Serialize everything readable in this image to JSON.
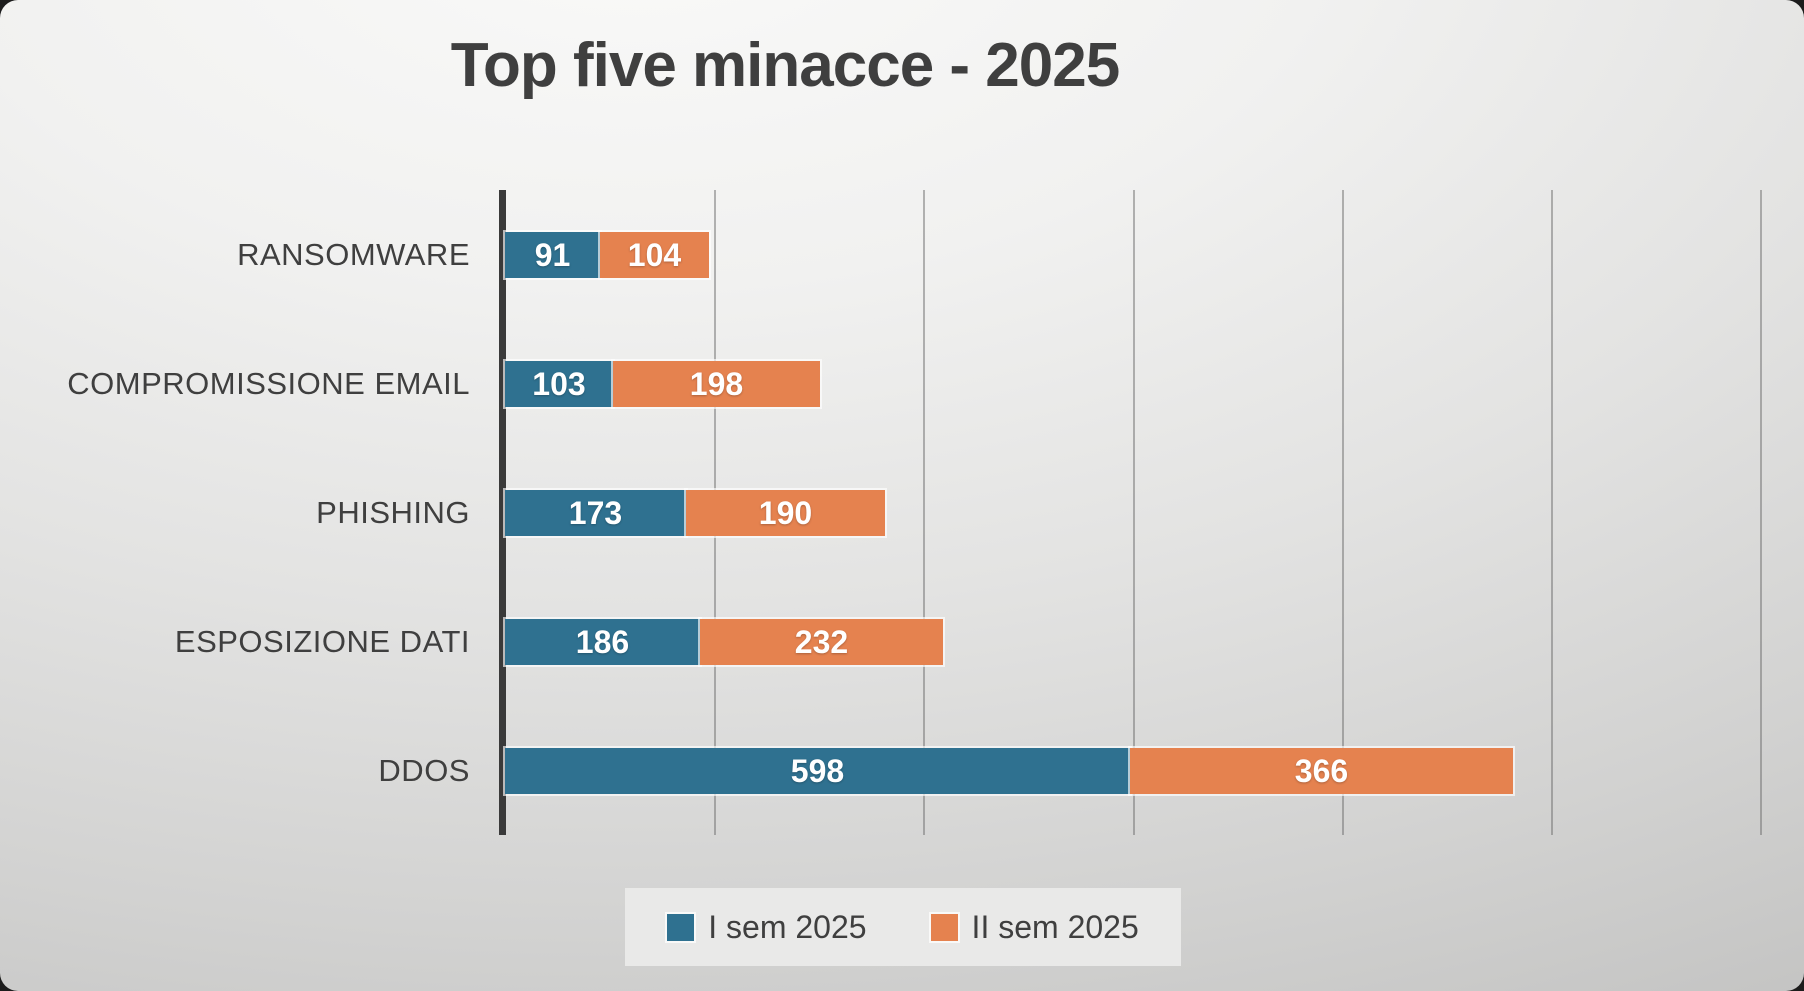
{
  "title": "Top five minacce - 2025",
  "colors": {
    "series1": "#2f7190",
    "series2": "#e5824f",
    "axis_line": "#3a3a3a",
    "gridline": "#6e6e6e",
    "text": "#3f3f3f",
    "value_label": "#ffffff",
    "legend_background": "#e9e9e8"
  },
  "chart_data": {
    "type": "bar",
    "orientation": "horizontal-stacked",
    "title": "Top five minacce - 2025",
    "categories": [
      "RANSOMWARE",
      "COMPROMISSIONE EMAIL",
      "PHISHING",
      "ESPOSIZIONE DATI",
      "DDOS"
    ],
    "series": [
      {
        "name": "I sem 2025",
        "color": "#2f7190",
        "values": [
          91,
          103,
          173,
          186,
          598
        ]
      },
      {
        "name": "II sem 2025",
        "color": "#e5824f",
        "values": [
          104,
          198,
          190,
          232,
          366
        ]
      }
    ],
    "xlabel": "",
    "ylabel": "",
    "xlim": [
      0,
      1200
    ],
    "gridline_interval": 200,
    "grid": true,
    "tick_labels_visible": false,
    "data_labels": "inside-center",
    "legend_position": "bottom-center"
  },
  "legend": {
    "items": [
      {
        "label": "I sem 2025"
      },
      {
        "label": "II sem 2025"
      }
    ]
  }
}
